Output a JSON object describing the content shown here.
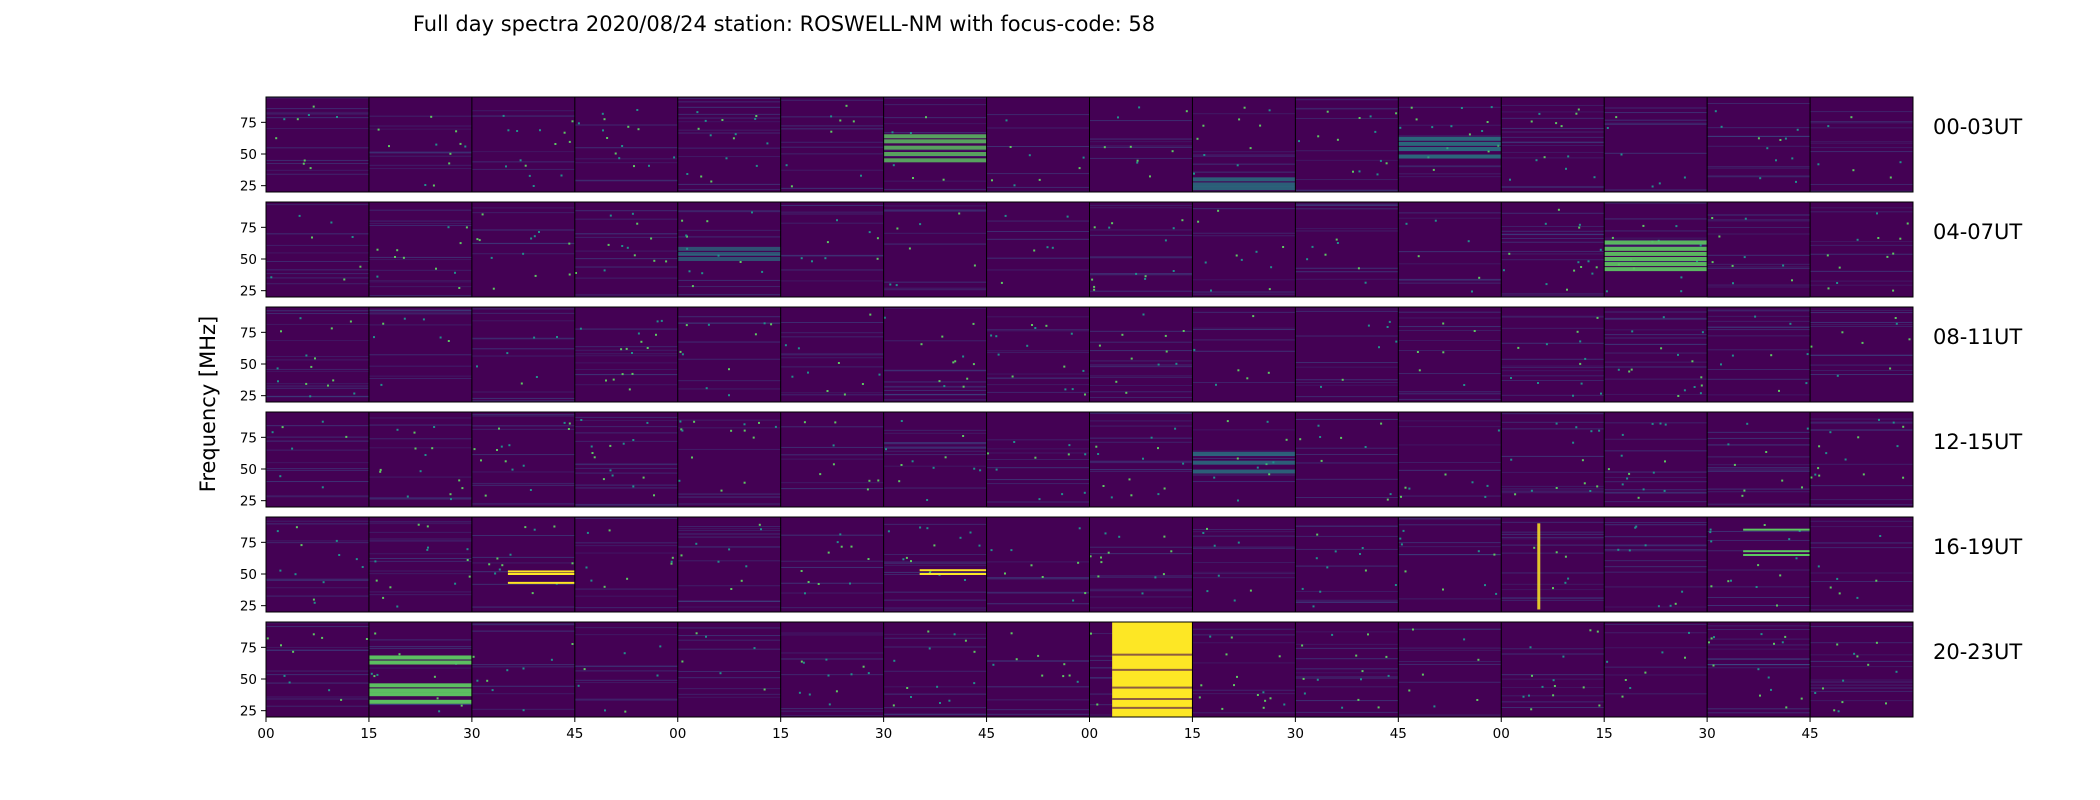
{
  "chart_data": {
    "type": "heatmap",
    "title": "Full day spectra 2020/08/24 station: ROSWELL-NM with focus-code: 58",
    "ylabel": "Frequency [MHz]",
    "xlabel": "",
    "colormap": "viridis",
    "colors": {
      "background": "#440154",
      "mid": "#3b528b",
      "teal": "#21918c",
      "green": "#5ec962",
      "yellow": "#fde725"
    },
    "ylim": [
      20,
      95
    ],
    "yticks": [
      25,
      50,
      75
    ],
    "xticks": [
      "00",
      "15",
      "30",
      "45",
      "00",
      "15",
      "30",
      "45",
      "00",
      "15",
      "30",
      "45",
      "00",
      "15",
      "30",
      "45"
    ],
    "panels_per_row": 16,
    "rows": [
      {
        "label": "00-03UT"
      },
      {
        "label": "04-07UT"
      },
      {
        "label": "08-11UT"
      },
      {
        "label": "12-15UT"
      },
      {
        "label": "16-19UT"
      },
      {
        "label": "20-23UT"
      }
    ],
    "features": [
      {
        "row": 0,
        "panel": 6,
        "type": "bands",
        "freqs": [
          64,
          60,
          55,
          50,
          45
        ],
        "intensity": 0.6
      },
      {
        "row": 0,
        "panel": 11,
        "type": "bands",
        "freqs": [
          62,
          58,
          54,
          48
        ],
        "intensity": 0.5
      },
      {
        "row": 0,
        "panel": 9,
        "type": "bands",
        "freqs": [
          30,
          26,
          23
        ],
        "intensity": 0.45
      },
      {
        "row": 1,
        "panel": 13,
        "type": "bands",
        "freqs": [
          63,
          58,
          54,
          50,
          46,
          42
        ],
        "intensity": 0.7
      },
      {
        "row": 1,
        "panel": 4,
        "type": "bands",
        "freqs": [
          58,
          54,
          50
        ],
        "intensity": 0.35
      },
      {
        "row": 3,
        "panel": 9,
        "type": "bands",
        "freqs": [
          62,
          55,
          48
        ],
        "intensity": 0.45
      },
      {
        "row": 4,
        "panel": 2,
        "type": "lines",
        "freqs": [
          52,
          50,
          43
        ],
        "intensity": 1.0
      },
      {
        "row": 4,
        "panel": 6,
        "type": "lines",
        "freqs": [
          53,
          50
        ],
        "intensity": 1.0
      },
      {
        "row": 4,
        "panel": 14,
        "type": "lines",
        "freqs": [
          85,
          68,
          65
        ],
        "intensity": 0.8
      },
      {
        "row": 4,
        "panel": 12,
        "type": "vertical",
        "freqs": [
          22,
          90
        ],
        "intensity": 0.9
      },
      {
        "row": 5,
        "panel": 1,
        "type": "bands",
        "freqs": [
          67,
          63,
          45,
          41,
          38,
          32
        ],
        "intensity": 0.75
      },
      {
        "row": 5,
        "panel": 8,
        "type": "saturated",
        "freqs": [
          20,
          95
        ],
        "intensity": 1.0
      }
    ]
  }
}
